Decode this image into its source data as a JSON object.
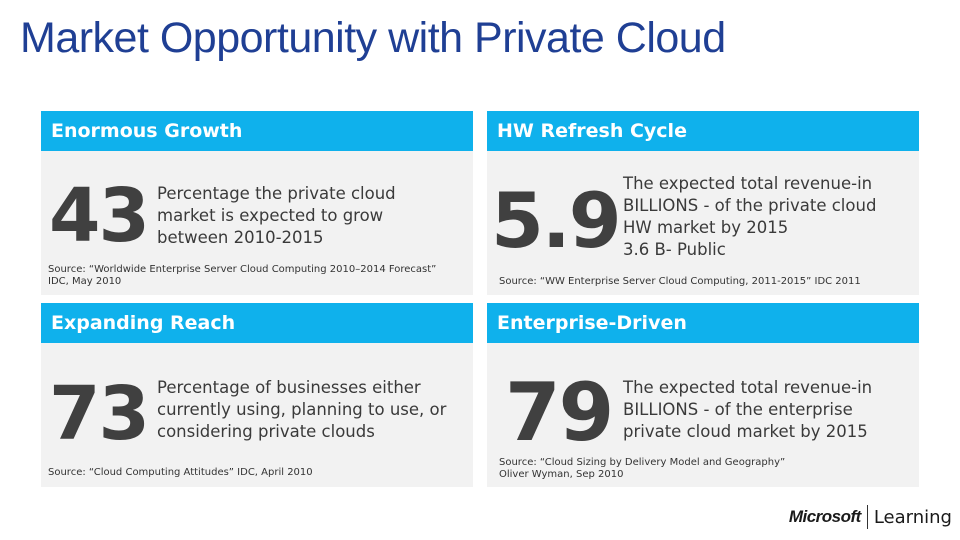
{
  "title": "Market Opportunity with Private Cloud",
  "panels": [
    {
      "header": "Enormous Growth",
      "number": "43",
      "desc": [
        "Percentage the private cloud",
        "market is expected to grow",
        "between 2010-2015"
      ],
      "source": [
        "Source: “Worldwide Enterprise Server Cloud Computing 2010–2014 Forecast”",
        "IDC, May 2010"
      ]
    },
    {
      "header": "HW Refresh Cycle",
      "number": "5.9",
      "desc": [
        "The expected total revenue-in",
        "BILLIONS - of the private cloud",
        "HW market by 2015",
        "3.6 B- Public"
      ],
      "source": [
        "Source: “WW Enterprise Server Cloud Computing, 2011-2015” IDC 2011"
      ]
    },
    {
      "header": "Expanding Reach",
      "number": "73",
      "desc": [
        "Percentage of businesses either",
        "currently using, planning to use, or",
        "considering private clouds"
      ],
      "source": [
        "Source: “Cloud Computing Attitudes” IDC, April 2010"
      ]
    },
    {
      "header": "Enterprise-Driven",
      "number": "79",
      "desc": [
        "The expected total revenue-in",
        "BILLIONS - of the enterprise",
        "private cloud market by 2015"
      ],
      "source": [
        "Source: “Cloud Sizing by Delivery Model and Geography”",
        "Oliver Wyman, Sep 2010"
      ]
    }
  ],
  "footer": {
    "brand": "Microsoft",
    "brand_suffix": "Learning"
  }
}
